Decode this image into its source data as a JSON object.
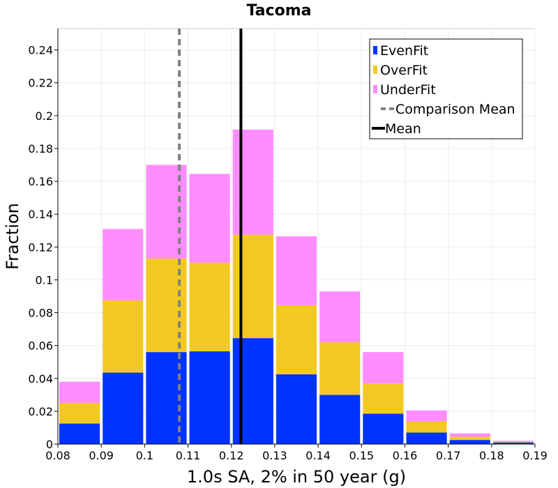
{
  "chart_data": {
    "type": "bar",
    "stacked": true,
    "title": "Tacoma",
    "xlabel": "1.0s SA, 2% in 50 year (g)",
    "ylabel": "Fraction",
    "xlim": [
      0.08,
      0.19
    ],
    "ylim": [
      0,
      0.253
    ],
    "bin_width": 0.01,
    "grid": true,
    "legend_position": "top-right",
    "x_ticks": [
      "0.08",
      "0.09",
      "0.1",
      "0.11",
      "0.12",
      "0.13",
      "0.14",
      "0.15",
      "0.16",
      "0.17",
      "0.18",
      "0.19"
    ],
    "y_ticks": [
      "0",
      "0.02",
      "0.04",
      "0.06",
      "0.08",
      "0.1",
      "0.12",
      "0.14",
      "0.16",
      "0.18",
      "0.2",
      "0.22",
      "0.24"
    ],
    "bins": [
      0.08,
      0.09,
      0.1,
      0.11,
      0.12,
      0.13,
      0.14,
      0.15,
      0.16,
      0.17,
      0.18
    ],
    "series": [
      {
        "name": "EvenFit",
        "color": "#0033ff",
        "values": [
          0.0125,
          0.0435,
          0.056,
          0.0565,
          0.0645,
          0.0425,
          0.03,
          0.0185,
          0.007,
          0.0025,
          0.001
        ]
      },
      {
        "name": "OverFit",
        "color": "#f2c922",
        "values": [
          0.0125,
          0.044,
          0.057,
          0.054,
          0.063,
          0.042,
          0.032,
          0.0185,
          0.007,
          0.002,
          0.0005
        ]
      },
      {
        "name": "UnderFit",
        "color": "#ff8dff",
        "values": [
          0.013,
          0.0435,
          0.057,
          0.054,
          0.064,
          0.042,
          0.031,
          0.019,
          0.0065,
          0.002,
          0.0005
        ]
      }
    ],
    "reference_lines": [
      {
        "name": "Comparison Mean",
        "x": 0.108,
        "color": "#808080",
        "style": "dashed"
      },
      {
        "name": "Mean",
        "x": 0.1222,
        "color": "#000000",
        "style": "solid"
      }
    ]
  }
}
